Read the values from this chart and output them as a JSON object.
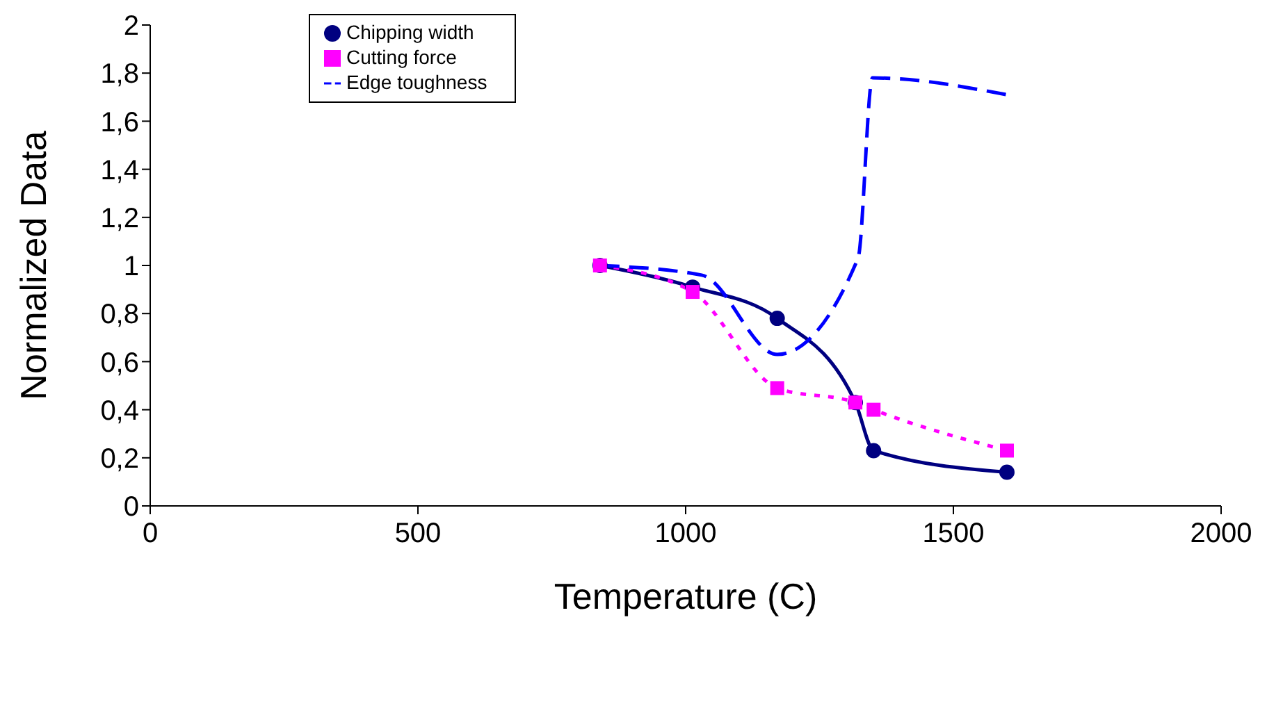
{
  "chart_data": {
    "type": "line",
    "xlabel": "Temperature (C)",
    "ylabel": "Normalized Data",
    "xlim": [
      0,
      2000
    ],
    "xticks": [
      0,
      500,
      1000,
      1500,
      2000
    ],
    "ylim": [
      0,
      2
    ],
    "yticks": [
      {
        "value": 0,
        "label": "0"
      },
      {
        "value": 0.2,
        "label": "0,2"
      },
      {
        "value": 0.4,
        "label": "0,4"
      },
      {
        "value": 0.6,
        "label": "0,6"
      },
      {
        "value": 0.8,
        "label": "0,8"
      },
      {
        "value": 1,
        "label": "1"
      },
      {
        "value": 1.2,
        "label": "1,2"
      },
      {
        "value": 1.4,
        "label": "1,4"
      },
      {
        "value": 1.6,
        "label": "1,6"
      },
      {
        "value": 1.8,
        "label": "1,8"
      },
      {
        "value": 2,
        "label": "2"
      }
    ],
    "legend": "top left",
    "grid": false,
    "x": [
      840,
      1013,
      1171,
      1317,
      1351,
      1600
    ],
    "series": [
      {
        "name": "Chipping width",
        "color": "#000080",
        "marker": "circle",
        "line_style": "solid",
        "values": [
          1.0,
          0.91,
          0.78,
          0.43,
          0.23,
          0.14
        ]
      },
      {
        "name": "Cutting force",
        "color": "#ff00ff",
        "marker": "square",
        "line_style": "dotted",
        "values": [
          1.0,
          0.89,
          0.49,
          0.43,
          0.4,
          0.23
        ]
      },
      {
        "name": "Edge toughness",
        "color": "#0000ff",
        "marker": "none",
        "line_style": "dashed",
        "x": [
          840,
          1030,
          1171,
          1322,
          1349,
          1600
        ],
        "values": [
          1.0,
          0.96,
          0.63,
          1.03,
          1.78,
          1.71
        ]
      }
    ]
  }
}
